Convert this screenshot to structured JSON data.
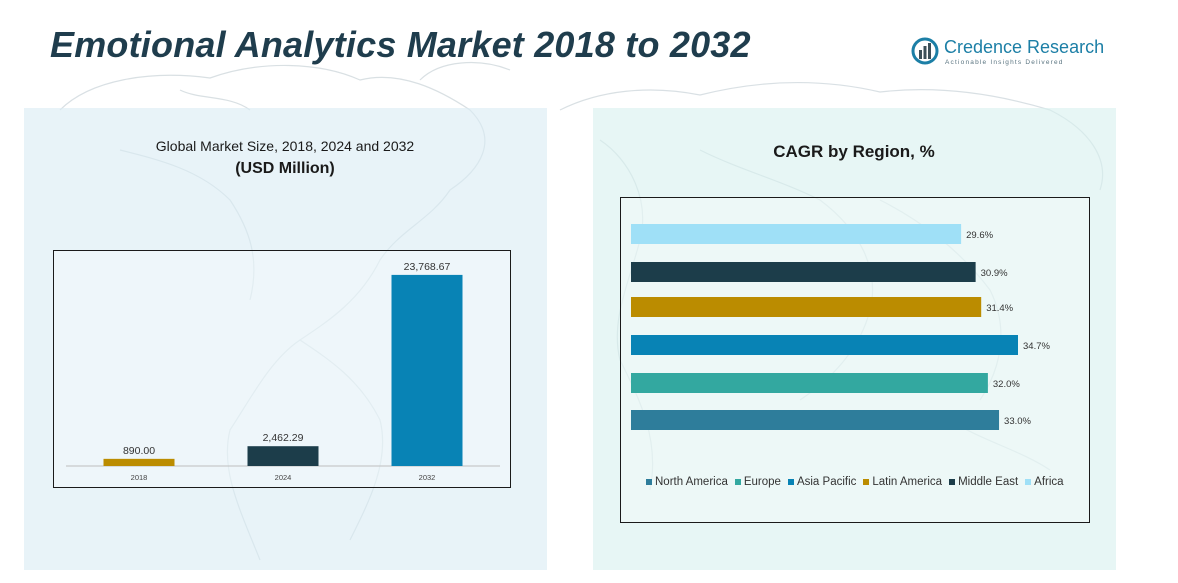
{
  "page": {
    "title": "Emotional Analytics Market 2018 to 2032"
  },
  "brand": {
    "name": "Credence Research",
    "tagline": "Actionable Insights Delivered"
  },
  "colors": {
    "title": "#1f3d4d",
    "north_america": "#2e7d9b",
    "europe": "#33a8a0",
    "asia_pacific": "#0883b5",
    "latin_america": "#bb8c00",
    "middle_east": "#1c3d4a",
    "africa": "#9fe0f7"
  },
  "chart_data": [
    {
      "type": "bar",
      "title": "Global Market Size, 2018, 2024 and 2032",
      "unit_label": "(USD Million)",
      "categories": [
        "2018",
        "2024",
        "2032"
      ],
      "values": [
        890.0,
        2462.29,
        23768.67
      ],
      "value_labels": [
        "890.00",
        "2,462.29",
        "23,768.67"
      ],
      "bar_colors": [
        "#bb8c00",
        "#1c3d4a",
        "#0883b5"
      ],
      "ylim": [
        0,
        25000
      ],
      "xlabel": "",
      "ylabel": ""
    },
    {
      "type": "bar",
      "orientation": "horizontal",
      "title": "CAGR by Region, %",
      "categories": [
        "Africa",
        "Middle East",
        "Latin America",
        "Asia Pacific",
        "Europe",
        "North America"
      ],
      "values": [
        29.6,
        30.9,
        31.4,
        34.7,
        32.0,
        33.0
      ],
      "value_labels": [
        "29.6%",
        "30.9%",
        "31.4%",
        "34.7%",
        "32.0%",
        "33.0%"
      ],
      "bar_colors": [
        "#9fe0f7",
        "#1c3d4a",
        "#bb8c00",
        "#0883b5",
        "#33a8a0",
        "#2e7d9b"
      ],
      "xlim": [
        0,
        34.7
      ],
      "legend": [
        "North America",
        "Europe",
        "Asia Pacific",
        "Latin America",
        "Middle East",
        "Africa"
      ],
      "legend_colors": [
        "#2e7d9b",
        "#33a8a0",
        "#0883b5",
        "#bb8c00",
        "#1c3d4a",
        "#9fe0f7"
      ],
      "legend_position": "bottom"
    }
  ]
}
